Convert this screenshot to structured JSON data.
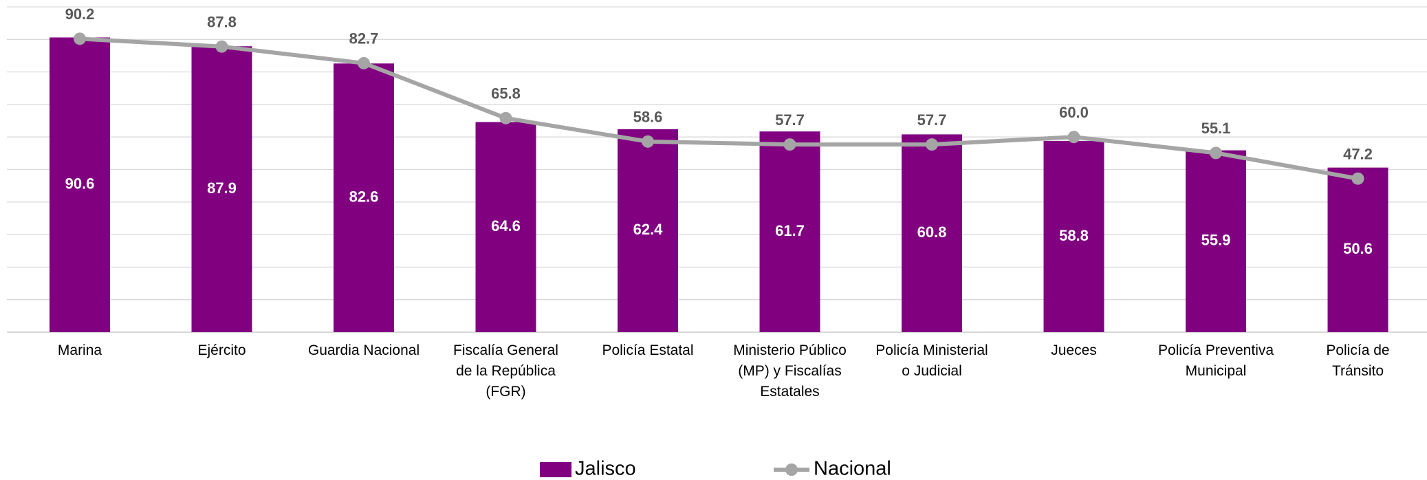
{
  "chart_data": {
    "type": "bar-line",
    "categories": [
      "Marina",
      "Ejército",
      "Guardia Nacional",
      "Fiscalía General\nde la República\n(FGR)",
      "Policía Estatal",
      "Ministerio Público\n(MP) y Fiscalías\nEstatales",
      "Policía Ministerial\no Judicial",
      "Jueces",
      "Policía Preventiva\nMunicipal",
      "Policía de\nTránsito"
    ],
    "series": [
      {
        "name": "Jalisco",
        "type": "bar",
        "color": "#800080",
        "values": [
          90.6,
          87.9,
          82.6,
          64.6,
          62.4,
          61.7,
          60.8,
          58.8,
          55.9,
          50.6
        ]
      },
      {
        "name": "Nacional",
        "type": "line",
        "color": "#a5a5a5",
        "values": [
          90.2,
          87.8,
          82.7,
          65.8,
          58.6,
          57.7,
          57.7,
          60.0,
          55.1,
          47.2
        ],
        "value_labels": [
          "90.2",
          "87.8",
          "82.7",
          "65.8",
          "58.6",
          "57.7",
          "57.7",
          "60.0",
          "55.1",
          "47.2"
        ]
      }
    ],
    "ylim": [
      0,
      100
    ],
    "yticks": [
      0,
      10,
      20,
      30,
      40,
      50,
      60,
      70,
      80,
      90,
      100
    ],
    "grid": true,
    "legend": "bottom"
  }
}
